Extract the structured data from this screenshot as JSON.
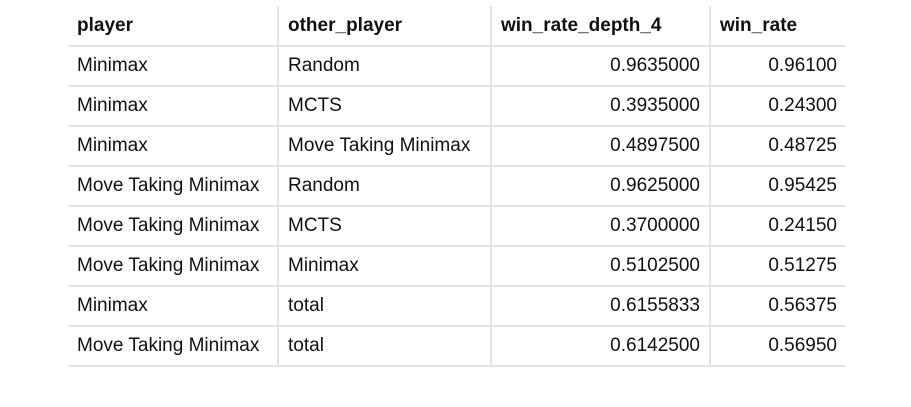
{
  "table": {
    "headers": [
      "player",
      "other_player",
      "win_rate_depth_4",
      "win_rate"
    ],
    "rows": [
      [
        "Minimax",
        "Random",
        "0.9635000",
        "0.96100"
      ],
      [
        "Minimax",
        "MCTS",
        "0.3935000",
        "0.24300"
      ],
      [
        "Minimax",
        "Move Taking Minimax",
        "0.4897500",
        "0.48725"
      ],
      [
        "Move Taking Minimax",
        "Random",
        "0.9625000",
        "0.95425"
      ],
      [
        "Move Taking Minimax",
        "MCTS",
        "0.3700000",
        "0.24150"
      ],
      [
        "Move Taking Minimax",
        "Minimax",
        "0.5102500",
        "0.51275"
      ],
      [
        "Minimax",
        "total",
        "0.6155833",
        "0.56375"
      ],
      [
        "Move Taking Minimax",
        "total",
        "0.6142500",
        "0.56950"
      ]
    ]
  }
}
